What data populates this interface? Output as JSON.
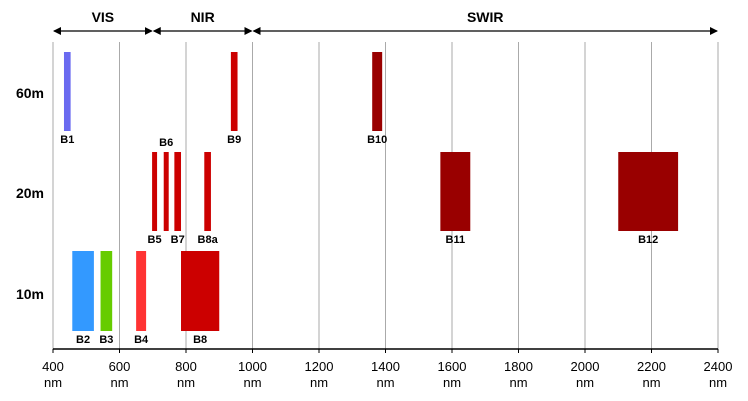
{
  "chart_data": {
    "type": "bar",
    "xlim": [
      400,
      2400
    ],
    "x_ticks": [
      {
        "value": 400,
        "label": "400",
        "unit": "nm"
      },
      {
        "value": 600,
        "label": "600",
        "unit": "nm"
      },
      {
        "value": 800,
        "label": "800",
        "unit": "nm"
      },
      {
        "value": 1000,
        "label": "1000",
        "unit": "nm"
      },
      {
        "value": 1200,
        "label": "1200",
        "unit": "nm"
      },
      {
        "value": 1400,
        "label": "1400",
        "unit": "nm"
      },
      {
        "value": 1600,
        "label": "1600",
        "unit": "nm"
      },
      {
        "value": 1800,
        "label": "1800",
        "unit": "nm"
      },
      {
        "value": 2000,
        "label": "2000",
        "unit": "nm"
      },
      {
        "value": 2200,
        "label": "2200",
        "unit": "nm"
      },
      {
        "value": 2400,
        "label": "2400",
        "unit": "nm"
      }
    ],
    "rows": [
      "60m",
      "20m",
      "10m"
    ],
    "regions": [
      {
        "label": "VIS",
        "start": 400,
        "end": 700
      },
      {
        "label": "NIR",
        "start": 700,
        "end": 1000
      },
      {
        "label": "SWIR",
        "start": 1000,
        "end": 2400
      }
    ],
    "grid": true,
    "bands": [
      {
        "name": "B1",
        "row": "60m",
        "start": 433,
        "end": 453,
        "color": "#6a6af0"
      },
      {
        "name": "B9",
        "row": "60m",
        "start": 935,
        "end": 955,
        "color": "#cc0000"
      },
      {
        "name": "B10",
        "row": "60m",
        "start": 1360,
        "end": 1390,
        "color": "#990000"
      },
      {
        "name": "B5",
        "row": "20m",
        "start": 698,
        "end": 713,
        "color": "#cc0000"
      },
      {
        "name": "B6",
        "row": "20m",
        "start": 733,
        "end": 748,
        "color": "#cc0000"
      },
      {
        "name": "B7",
        "row": "20m",
        "start": 765,
        "end": 785,
        "color": "#cc0000"
      },
      {
        "name": "B8a",
        "row": "20m",
        "start": 855,
        "end": 875,
        "color": "#cc0000"
      },
      {
        "name": "B11",
        "row": "20m",
        "start": 1565,
        "end": 1655,
        "color": "#990000"
      },
      {
        "name": "B12",
        "row": "20m",
        "start": 2100,
        "end": 2280,
        "color": "#990000"
      },
      {
        "name": "B2",
        "row": "10m",
        "start": 458,
        "end": 523,
        "color": "#3399ff"
      },
      {
        "name": "B3",
        "row": "10m",
        "start": 543,
        "end": 578,
        "color": "#66cc00"
      },
      {
        "name": "B4",
        "row": "10m",
        "start": 650,
        "end": 680,
        "color": "#ff3333"
      },
      {
        "name": "B8",
        "row": "10m",
        "start": 785,
        "end": 900,
        "color": "#cc0000"
      }
    ]
  }
}
